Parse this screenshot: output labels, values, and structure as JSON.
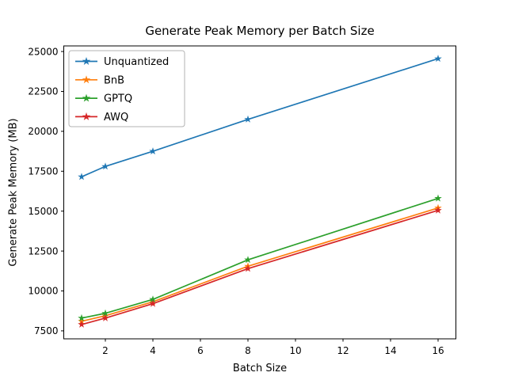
{
  "chart_data": {
    "type": "line",
    "title": "Generate Peak Memory per Batch Size",
    "xlabel": "Batch Size",
    "ylabel": "Generate Peak Memory (MB)",
    "x": [
      1,
      2,
      4,
      8,
      16
    ],
    "series": [
      {
        "name": "Unquantized",
        "color": "#1f77b4",
        "values": [
          17150,
          17800,
          18750,
          20750,
          24550
        ]
      },
      {
        "name": "BnB",
        "color": "#ff7f0e",
        "values": [
          8100,
          8450,
          9320,
          11550,
          15200
        ]
      },
      {
        "name": "GPTQ",
        "color": "#2ca02c",
        "values": [
          8300,
          8600,
          9470,
          11950,
          15800
        ]
      },
      {
        "name": "AWQ",
        "color": "#d62728",
        "values": [
          7900,
          8300,
          9200,
          11400,
          15050
        ]
      }
    ],
    "xlim": [
      0.25,
      16.75
    ],
    "ylim": [
      7000,
      25350
    ],
    "xticks": [
      2,
      4,
      6,
      8,
      10,
      12,
      14,
      16
    ],
    "yticks": [
      7500,
      10000,
      12500,
      15000,
      17500,
      20000,
      22500,
      25000
    ],
    "grid": false,
    "marker": "star",
    "legend_position": "upper left",
    "frame_color": "#000000",
    "legend_border_color": "#b3b3b3"
  }
}
